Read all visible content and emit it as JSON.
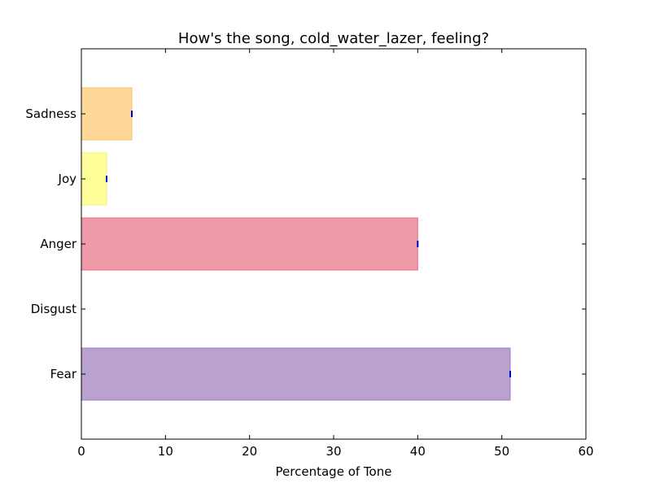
{
  "chart_data": {
    "type": "bar",
    "orientation": "horizontal",
    "title": "How's the song, cold_water_lazer, feeling?",
    "xlabel": "Percentage of Tone",
    "ylabel": "",
    "xlim": [
      0,
      60
    ],
    "xticks": [
      0,
      10,
      20,
      30,
      40,
      50,
      60
    ],
    "categories": [
      "Fear",
      "Disgust",
      "Anger",
      "Joy",
      "Sadness"
    ],
    "values": [
      51,
      0,
      40,
      3,
      6
    ],
    "colors": [
      "#b9a1d0",
      "#7fb3d5",
      "#ee9aa8",
      "#ffff99",
      "#fed898"
    ],
    "edge_colors": [
      "#9a7fc2",
      "#5a9bd5",
      "#e6687f",
      "#f0f07a",
      "#f5c56a"
    ],
    "grid": false,
    "legend": "none"
  }
}
